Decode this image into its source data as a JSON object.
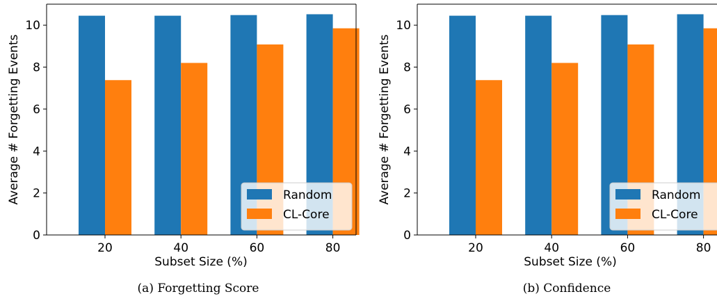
{
  "chart_data": [
    {
      "type": "bar",
      "caption": "(a) Forgetting Score",
      "categories": [
        "20",
        "40",
        "60",
        "80"
      ],
      "series": [
        {
          "name": "Random",
          "values": [
            10.45,
            10.45,
            10.48,
            10.52
          ],
          "color": "#1f77b4"
        },
        {
          "name": "CL-Core",
          "values": [
            7.38,
            8.2,
            9.08,
            9.85
          ],
          "color": "#ff7f0e"
        }
      ],
      "xlabel": "Subset Size (%)",
      "ylabel": "Average # Forgetting Events",
      "ylim": [
        0,
        11
      ],
      "yticks": [
        "0",
        "2",
        "4",
        "6",
        "8",
        "10"
      ],
      "legend": "lower-right",
      "grid": false
    },
    {
      "type": "bar",
      "caption": "(b) Confidence",
      "categories": [
        "20",
        "40",
        "60",
        "80"
      ],
      "series": [
        {
          "name": "Random",
          "values": [
            10.45,
            10.45,
            10.48,
            10.52
          ],
          "color": "#1f77b4"
        },
        {
          "name": "CL-Core",
          "values": [
            7.38,
            8.2,
            9.08,
            9.85
          ],
          "color": "#ff7f0e"
        }
      ],
      "xlabel": "Subset Size (%)",
      "ylabel": "Average # Forgetting Events",
      "ylim": [
        0,
        11
      ],
      "yticks": [
        "0",
        "2",
        "4",
        "6",
        "8",
        "10"
      ],
      "legend": "lower-right",
      "grid": false
    }
  ]
}
